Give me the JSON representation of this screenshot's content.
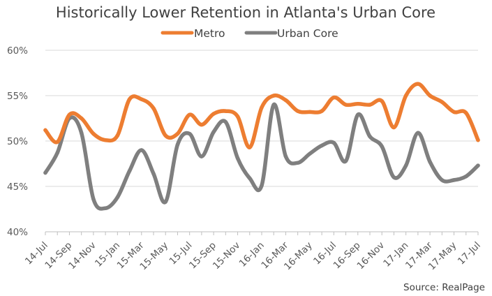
{
  "chart_data": {
    "type": "line",
    "title": "Historically Lower Retention in Atlanta's Urban Core",
    "source": "Source: RealPage",
    "xlabel": "",
    "ylabel": "",
    "ylim": [
      40,
      60
    ],
    "yticks": [
      40,
      45,
      50,
      55,
      60
    ],
    "ytick_labels": [
      "40%",
      "45%",
      "50%",
      "55%",
      "60%"
    ],
    "ytick_suffix": "%",
    "grid": true,
    "legend_position": "top",
    "x_tick_labels": [
      "14-Jul",
      "14-Sep",
      "14-Nov",
      "15-Jan",
      "15-Mar",
      "15-May",
      "15-Jul",
      "15-Sep",
      "15-Nov",
      "16-Jan",
      "16-Mar",
      "16-May",
      "16-Jul",
      "16-Sep",
      "16-Nov",
      "17-Jan",
      "17-Mar",
      "17-May",
      "17-Jul"
    ],
    "x": [
      "14-Jul",
      "14-Aug",
      "14-Sep",
      "14-Oct",
      "14-Nov",
      "14-Dec",
      "15-Jan",
      "15-Feb",
      "15-Mar",
      "15-Apr",
      "15-May",
      "15-Jun",
      "15-Jul",
      "15-Aug",
      "15-Sep",
      "15-Oct",
      "15-Nov",
      "15-Dec",
      "16-Jan",
      "16-Feb",
      "16-Mar",
      "16-Apr",
      "16-May",
      "16-Jun",
      "16-Jul",
      "16-Aug",
      "16-Sep",
      "16-Oct",
      "16-Nov",
      "16-Dec",
      "17-Jan",
      "17-Feb",
      "17-Mar",
      "17-Apr",
      "17-May",
      "17-Jun",
      "17-Jul"
    ],
    "series": [
      {
        "name": "Metro",
        "color": "#ED7D31",
        "values": [
          51.2,
          49.9,
          52.9,
          52.5,
          50.8,
          50.1,
          50.6,
          54.6,
          54.6,
          53.6,
          50.6,
          50.8,
          52.9,
          51.8,
          53.0,
          53.3,
          52.7,
          49.3,
          53.7,
          55.0,
          54.5,
          53.3,
          53.2,
          53.3,
          54.8,
          54.0,
          54.1,
          54.0,
          54.4,
          51.5,
          55.0,
          56.3,
          55.0,
          54.3,
          53.2,
          53.1,
          50.1
        ]
      },
      {
        "name": "Urban Core",
        "color": "#7F7F7F",
        "values": [
          46.5,
          48.7,
          52.5,
          50.9,
          43.6,
          42.6,
          43.8,
          46.7,
          49.0,
          46.4,
          43.3,
          49.6,
          50.8,
          48.3,
          51.0,
          52.1,
          48.1,
          45.9,
          45.1,
          54.0,
          48.3,
          47.6,
          48.6,
          49.5,
          49.8,
          47.8,
          52.9,
          50.5,
          49.4,
          46.0,
          47.3,
          50.9,
          47.7,
          45.7,
          45.7,
          46.1,
          47.3
        ]
      }
    ]
  }
}
